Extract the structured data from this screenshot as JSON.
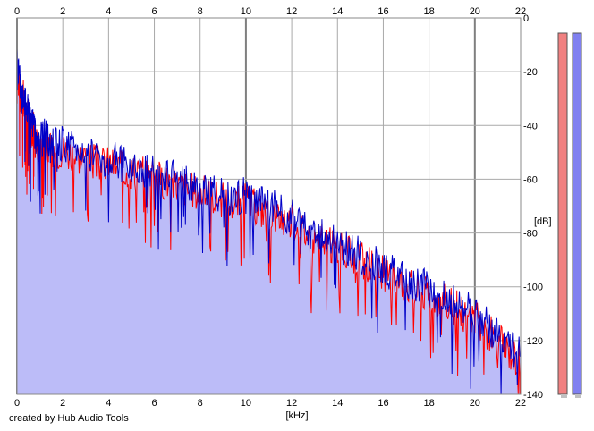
{
  "credit": "created by Hub Audio Tools",
  "colors": {
    "background": "#ffffff",
    "grid": "#a9a9a9",
    "grid_major": "#7f7f7f",
    "fill": "#bcbcf8",
    "channel_left": "#ff0000",
    "channel_right": "#0000c8",
    "meter_left": "#f08080",
    "meter_right": "#8080f0"
  },
  "chart_data": {
    "type": "area",
    "xlabel": "[kHz]",
    "ylabel": "[dB]",
    "xlim": [
      0,
      22
    ],
    "ylim": [
      -140,
      0
    ],
    "x_ticks": [
      "0",
      "2",
      "4",
      "6",
      "8",
      "10",
      "12",
      "14",
      "16",
      "18",
      "20",
      "22"
    ],
    "y_ticks": [
      "0",
      "-20",
      "-40",
      "-60",
      "-80",
      "-100",
      "-120",
      "-140"
    ],
    "grid": true,
    "series": [
      {
        "channel": "right",
        "color": "#0000c8",
        "x": [
          0,
          0.1,
          0.2,
          0.3,
          0.4,
          0.5,
          0.6,
          0.7,
          0.8,
          1.0,
          1.2,
          1.5,
          2.0,
          2.5,
          3.0,
          3.5,
          4.0,
          4.5,
          5.0,
          5.5,
          6.0,
          6.5,
          7.0,
          7.5,
          8.0,
          8.5,
          9.0,
          9.5,
          10.0,
          10.5,
          11.0,
          11.5,
          12.0,
          12.5,
          13.0,
          13.5,
          14.0,
          14.5,
          15.0,
          15.5,
          16.0,
          16.5,
          17.0,
          17.5,
          18.0,
          18.5,
          19.0,
          19.5,
          20.0,
          20.5,
          21.0,
          21.5,
          22.0
        ],
        "values": [
          -17,
          -22,
          -30,
          -27,
          -35,
          -33,
          -42,
          -38,
          -44,
          -46,
          -44,
          -48,
          -47,
          -49,
          -50,
          -52,
          -52,
          -54,
          -55,
          -56,
          -57,
          -59,
          -60,
          -62,
          -63,
          -64,
          -66,
          -67,
          -66,
          -69,
          -70,
          -72,
          -74,
          -77,
          -80,
          -82,
          -84,
          -86,
          -88,
          -90,
          -93,
          -95,
          -97,
          -99,
          -101,
          -103,
          -105,
          -108,
          -110,
          -114,
          -118,
          -122,
          -126
        ]
      },
      {
        "channel": "left",
        "color": "#ff0000",
        "x": [
          0,
          0.1,
          0.2,
          0.3,
          0.4,
          0.5,
          0.6,
          0.7,
          0.8,
          1.0,
          1.2,
          1.5,
          2.0,
          2.5,
          3.0,
          3.5,
          4.0,
          4.5,
          5.0,
          5.5,
          6.0,
          6.5,
          7.0,
          7.5,
          8.0,
          8.5,
          9.0,
          9.5,
          10.0,
          10.5,
          11.0,
          11.5,
          12.0,
          12.5,
          13.0,
          13.5,
          14.0,
          14.5,
          15.0,
          15.5,
          16.0,
          16.5,
          17.0,
          17.5,
          18.0,
          18.5,
          19.0,
          19.5,
          20.0,
          20.5,
          21.0,
          21.5,
          22.0
        ],
        "values": [
          -19,
          -24,
          -32,
          -29,
          -37,
          -35,
          -44,
          -40,
          -46,
          -48,
          -46,
          -50,
          -49,
          -51,
          -52,
          -54,
          -54,
          -56,
          -57,
          -58,
          -59,
          -61,
          -62,
          -64,
          -65,
          -66,
          -68,
          -69,
          -68,
          -71,
          -72,
          -74,
          -76,
          -79,
          -82,
          -84,
          -86,
          -88,
          -90,
          -92,
          -95,
          -97,
          -99,
          -101,
          -103,
          -105,
          -107,
          -110,
          -112,
          -116,
          -120,
          -124,
          -128
        ]
      }
    ]
  }
}
